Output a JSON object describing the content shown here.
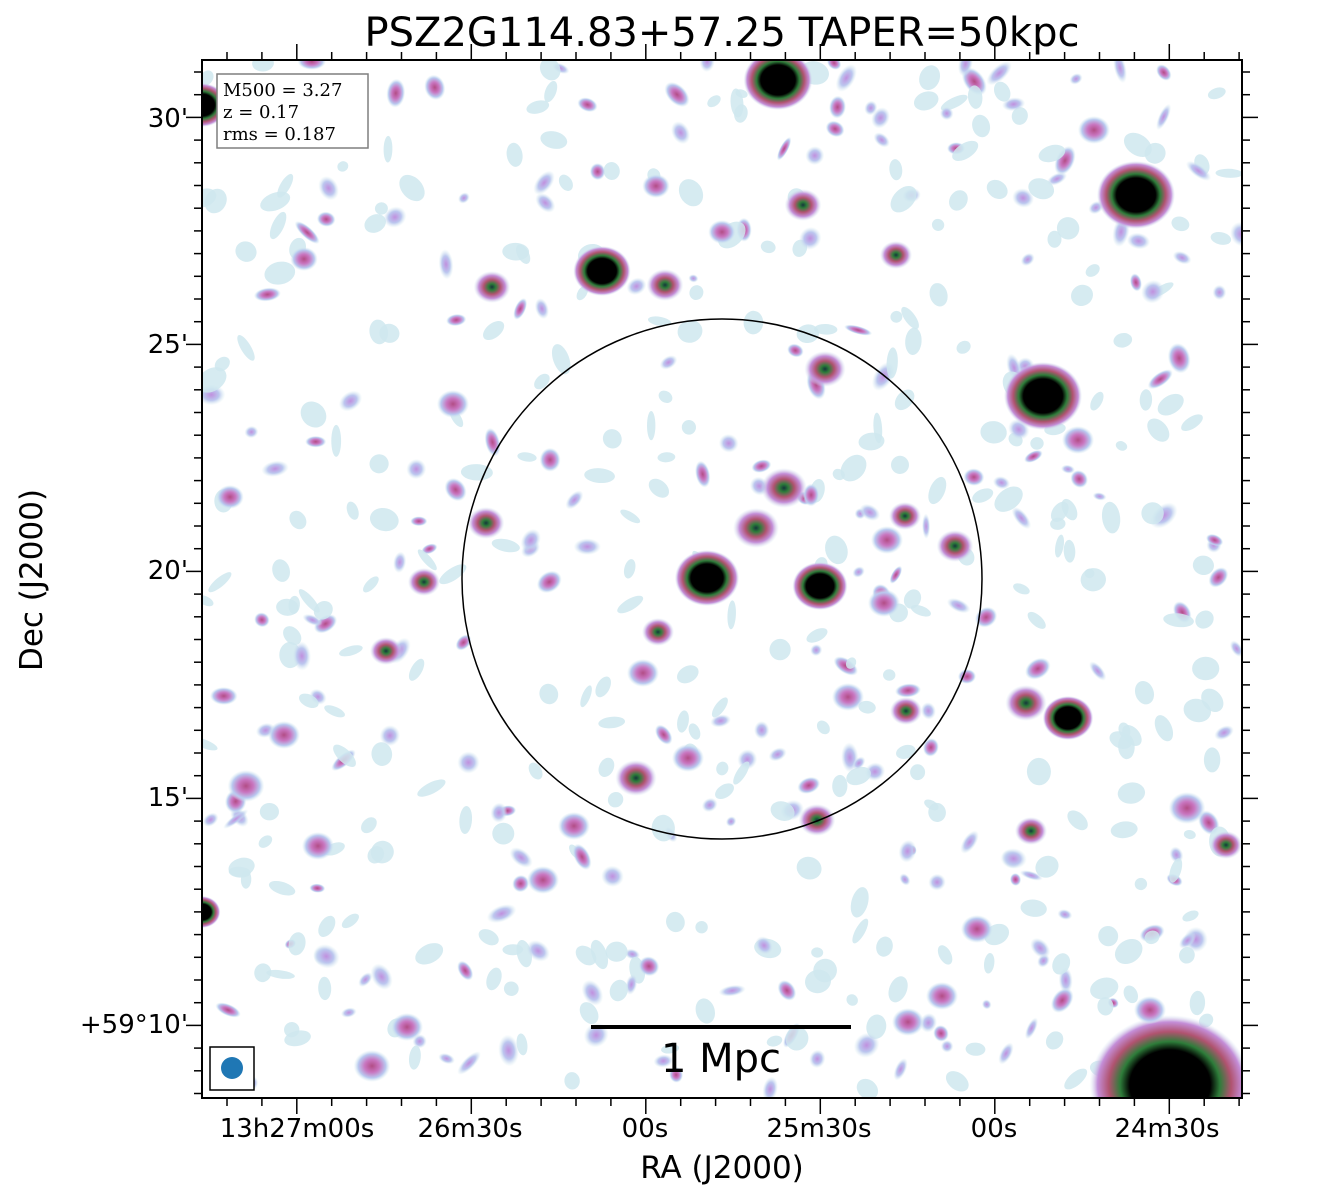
{
  "title": "PSZ2G114.83+57.25 TAPER=50kpc",
  "info_box": {
    "m500": "M500 = 3.27",
    "z": "z = 0.17",
    "rms": "rms = 0.187"
  },
  "axes": {
    "xlabel": "RA (J2000)",
    "ylabel": "Dec (J2000)",
    "x_ticks": [
      "13h27m00s",
      "26m30s",
      "00s",
      "25m30s",
      "00s",
      "24m30s"
    ],
    "y_ticks": [
      "30'",
      "25'",
      "20'",
      "15'",
      "+59°10'"
    ]
  },
  "scale_bar": {
    "label": "1 Mpc"
  },
  "beam_icon": "beam-ellipse-icon",
  "colors": {
    "colormap": [
      "#cfeaee",
      "#b9cdf0",
      "#c99be0",
      "#c45c9c",
      "#2e7d3a",
      "#000000"
    ],
    "beam": "#1f77b4",
    "circle": "#000000"
  }
}
